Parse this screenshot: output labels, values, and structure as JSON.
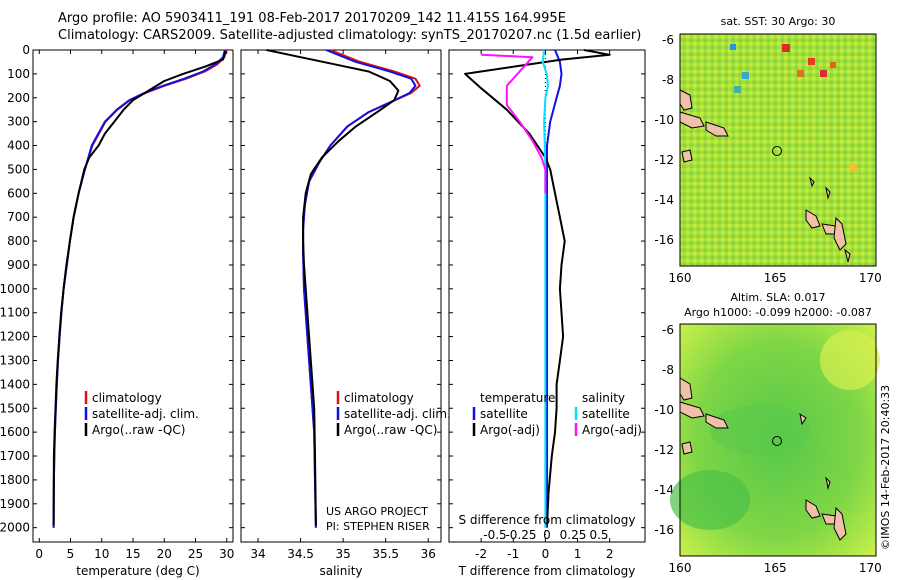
{
  "header": {
    "line1": "Argo profile: AO 5903411_191 08-Feb-2017 20170209_142 11.415S 164.995E",
    "line2": "Climatology: CARS2009. Satellite-adjusted climatology: synTS_20170207.nc (1.5d earlier)"
  },
  "stamp": "©IMOS 14-Feb-2017 20:40:33",
  "legend_profiles": [
    "climatology",
    "satellite-adj. clim.",
    "Argo(..raw -QC)"
  ],
  "project": {
    "line1": "US ARGO PROJECT",
    "line2": "PI: STEPHEN RISER"
  },
  "diff_legend": {
    "temperature": {
      "title": "temperature",
      "items": [
        "satellite",
        "Argo(-adj)"
      ]
    },
    "salinity": {
      "title": "salinity",
      "items": [
        "satellite",
        "Argo(-adj)"
      ]
    }
  },
  "colors": {
    "climatology": "#e01010",
    "satellite": "#1010e0",
    "argo": "#000000",
    "sal_satellite": "#00e0ff",
    "sal_argo": "#ff10ff"
  },
  "chart_data": [
    {
      "type": "line",
      "xlabel": "temperature (deg C)",
      "xlim": [
        -1,
        31
      ],
      "ylim": [
        2060,
        0
      ],
      "xticks": [
        0,
        5,
        10,
        15,
        20,
        25,
        30
      ],
      "yticks": [
        0,
        100,
        200,
        300,
        400,
        500,
        600,
        700,
        800,
        900,
        1000,
        1100,
        1200,
        1300,
        1400,
        1500,
        1600,
        1700,
        1800,
        1900,
        2000
      ],
      "series": [
        {
          "name": "climatology",
          "color": "#e01010",
          "x": [
            29.9,
            29.6,
            28.5,
            26.5,
            23.5,
            20,
            17,
            14.5,
            12.5,
            10.6,
            8.5,
            7.3,
            6.3,
            5.5,
            4.9,
            4.4,
            3.9,
            3.55,
            3.25,
            3.0,
            2.8,
            2.65,
            2.5,
            2.4,
            2.35,
            2.3
          ],
          "y": [
            0,
            30,
            60,
            90,
            120,
            150,
            180,
            210,
            250,
            300,
            400,
            500,
            600,
            700,
            800,
            900,
            1000,
            1100,
            1200,
            1300,
            1400,
            1500,
            1600,
            1700,
            1800,
            2000
          ]
        },
        {
          "name": "satellite-adj. clim.",
          "color": "#1010e0",
          "x": [
            29.7,
            29.4,
            28.2,
            26.2,
            23.2,
            19.8,
            16.8,
            14.4,
            12.4,
            10.5,
            8.4,
            7.3,
            6.3,
            5.5,
            4.9,
            4.4,
            3.9,
            3.55,
            3.25,
            3.0,
            2.8,
            2.65,
            2.5,
            2.4,
            2.35,
            2.3
          ],
          "y": [
            0,
            30,
            60,
            90,
            120,
            150,
            180,
            210,
            250,
            300,
            400,
            500,
            600,
            700,
            800,
            900,
            1000,
            1100,
            1200,
            1300,
            1400,
            1500,
            1600,
            1700,
            1800,
            2000
          ]
        },
        {
          "name": "Argo(..raw -QC)",
          "color": "#000000",
          "x": [
            29.8,
            29.4,
            26.5,
            23,
            20,
            17.5,
            15,
            13.5,
            12,
            10.5,
            9.5,
            8,
            7.2,
            6.3,
            5.5,
            4.9,
            4.35,
            3.9,
            3.5,
            3.2,
            2.95,
            2.75,
            2.6,
            2.45,
            2.35,
            2.3
          ],
          "y": [
            5,
            40,
            70,
            100,
            130,
            170,
            210,
            250,
            300,
            350,
            400,
            450,
            500,
            600,
            700,
            800,
            900,
            1000,
            1100,
            1200,
            1300,
            1400,
            1500,
            1600,
            1700,
            1990
          ]
        }
      ]
    },
    {
      "type": "line",
      "xlabel": "salinity",
      "xlim": [
        33.8,
        36.15
      ],
      "ylim": [
        2060,
        0
      ],
      "xticks": [
        34,
        34.5,
        35,
        35.5,
        36
      ],
      "series": [
        {
          "name": "climatology",
          "color": "#e01010",
          "x": [
            34.85,
            35.2,
            35.6,
            35.85,
            35.9,
            35.8,
            35.55,
            35.3,
            35.05,
            34.85,
            34.72,
            34.6,
            34.55,
            34.53,
            34.53,
            34.54,
            34.56,
            34.58,
            34.6,
            34.62,
            34.64,
            34.66,
            34.67,
            34.68
          ],
          "y": [
            0,
            50,
            90,
            120,
            150,
            180,
            220,
            260,
            320,
            400,
            470,
            550,
            650,
            750,
            850,
            1000,
            1100,
            1200,
            1300,
            1400,
            1500,
            1600,
            1800,
            2000
          ]
        },
        {
          "name": "satellite-adj. clim.",
          "color": "#1010e0",
          "x": [
            34.8,
            35.15,
            35.55,
            35.8,
            35.85,
            35.78,
            35.55,
            35.3,
            35.05,
            34.85,
            34.72,
            34.6,
            34.55,
            34.53,
            34.53,
            34.54,
            34.56,
            34.58,
            34.6,
            34.62,
            34.64,
            34.66,
            34.67,
            34.68
          ],
          "y": [
            0,
            50,
            90,
            120,
            150,
            180,
            220,
            260,
            320,
            400,
            470,
            550,
            650,
            750,
            850,
            1000,
            1100,
            1200,
            1300,
            1400,
            1500,
            1600,
            1800,
            2000
          ]
        },
        {
          "name": "Argo(..raw -QC)",
          "color": "#000000",
          "x": [
            34.1,
            34.5,
            34.9,
            35.3,
            35.55,
            35.65,
            35.6,
            35.4,
            35.15,
            34.95,
            34.75,
            34.62,
            34.56,
            34.53,
            34.53,
            34.54,
            34.56,
            34.58,
            34.6,
            34.62,
            34.64,
            34.66,
            34.67,
            34.68
          ],
          "y": [
            0,
            30,
            60,
            90,
            130,
            170,
            210,
            260,
            320,
            380,
            450,
            520,
            600,
            700,
            800,
            900,
            1000,
            1100,
            1200,
            1300,
            1400,
            1500,
            1700,
            1990
          ]
        }
      ]
    },
    {
      "type": "line",
      "xlabel": "T difference from climatology",
      "xlabel_top": "S difference from climatology",
      "xlim": [
        -3,
        3.1
      ],
      "ylim": [
        2060,
        0
      ],
      "xticks": [
        -2,
        -1,
        0,
        1,
        2
      ],
      "xticks_top": [
        -0.5,
        -0.25,
        0,
        0.25,
        0.5
      ],
      "series": [
        {
          "name": "temperature satellite",
          "color": "#1010e0",
          "x": [
            0.3,
            0.45,
            0.5,
            0.45,
            0.35,
            0.25,
            0.15,
            0.1,
            0.05,
            0.05,
            0.05,
            0.05,
            0.05,
            0.05,
            0.05,
            0.05
          ],
          "y": [
            0,
            50,
            100,
            150,
            200,
            250,
            300,
            350,
            400,
            500,
            600,
            800,
            1000,
            1400,
            1800,
            2000
          ]
        },
        {
          "name": "temperature Argo(-adj)",
          "color": "#000000",
          "x": [
            1.2,
            2.0,
            0.5,
            -2.5,
            -2.0,
            -1.2,
            -0.5,
            0.0,
            0.15,
            0.3,
            0.45,
            0.6,
            0.5,
            0.45,
            0.5,
            0.55,
            0.45,
            0.35,
            0.35,
            0.3,
            0.2,
            0.1,
            0.05
          ],
          "y": [
            0,
            20,
            40,
            100,
            160,
            250,
            350,
            450,
            500,
            600,
            700,
            800,
            900,
            1000,
            1100,
            1200,
            1300,
            1400,
            1500,
            1600,
            1700,
            1850,
            1990
          ]
        },
        {
          "name": "salinity satellite",
          "color": "#00e0ff",
          "x": [
            -0.01,
            -0.02,
            0.01,
            0.02,
            0.0,
            -0.01,
            0.0,
            0.0,
            0.0,
            0.0
          ],
          "y": [
            0,
            50,
            100,
            150,
            200,
            300,
            500,
            800,
            1200,
            2000
          ]
        },
        {
          "name": "salinity Argo(-adj)",
          "color": "#ff10ff",
          "x": [
            -0.5,
            -0.1,
            -0.15,
            -0.3,
            -0.3,
            -0.2,
            -0.1,
            -0.03,
            0.0,
            0.0
          ],
          "y": [
            20,
            30,
            60,
            150,
            230,
            300,
            380,
            450,
            500,
            600
          ]
        }
      ]
    },
    {
      "type": "heatmap",
      "title": "sat. SST: 30 Argo: 30",
      "xlim": [
        160,
        170.3
      ],
      "ylim": [
        -17.3,
        -5.7
      ],
      "xticks": [
        160,
        165,
        170
      ],
      "yticks": [
        -6,
        -8,
        -10,
        -12,
        -14,
        -16
      ],
      "marker": {
        "lon": 164.995,
        "lat": -11.415
      }
    },
    {
      "type": "heatmap",
      "title": "Altim. SLA: 0.017",
      "subtitle": "Argo h1000: -0.099 h2000: -0.087",
      "xlim": [
        160,
        170.3
      ],
      "ylim": [
        -17.3,
        -5.7
      ],
      "xticks": [
        160,
        165,
        170
      ],
      "yticks": [
        -6,
        -8,
        -10,
        -12,
        -14,
        -16
      ],
      "marker": {
        "lon": 164.995,
        "lat": -11.415
      }
    }
  ]
}
